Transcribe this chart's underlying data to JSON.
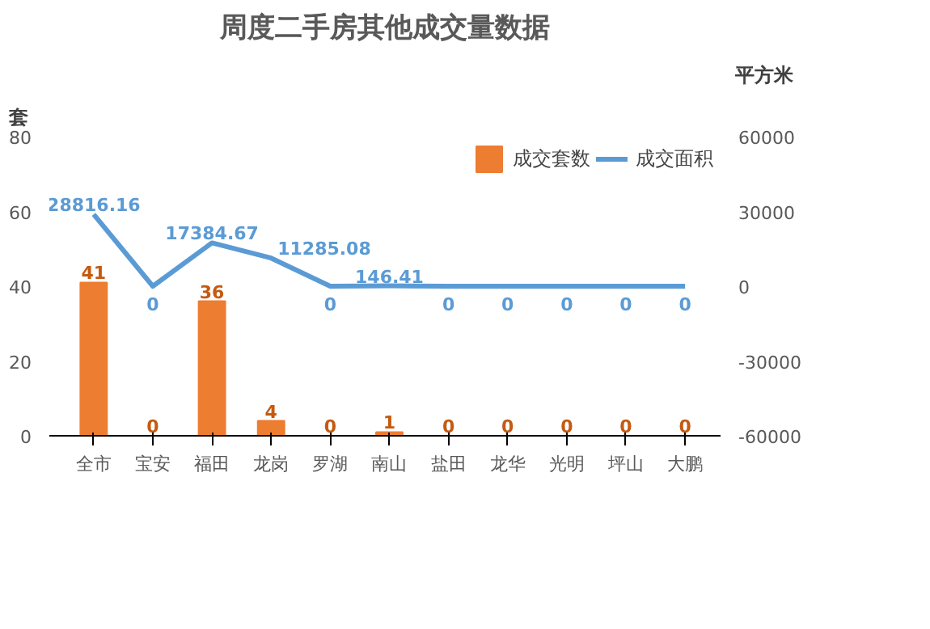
{
  "chart_data": {
    "type": "bar",
    "title": "周度二手房其他成交量数据",
    "ylabel": "套",
    "y2label": "平方米",
    "categories": [
      "全市",
      "宝安",
      "福田",
      "龙岗",
      "罗湖",
      "南山",
      "盐田",
      "龙华",
      "光明",
      "坪山",
      "大鹏"
    ],
    "series": [
      {
        "name": "成交套数",
        "color": "#ed7d31",
        "values": [
          41,
          0,
          36,
          4,
          0,
          1,
          0,
          0,
          0,
          0,
          0
        ]
      },
      {
        "name": "成交面积",
        "type": "line",
        "axis": "y2",
        "color": "#5b9bd5",
        "values": [
          28816.16,
          0,
          17384.67,
          11285.08,
          0,
          146.41,
          0,
          0,
          0,
          0,
          0
        ]
      }
    ],
    "ylim": [
      0,
      80
    ],
    "yticks": [
      0,
      20,
      40,
      60,
      80
    ],
    "y2lim": [
      -60000,
      60000
    ],
    "y2ticks": [
      -60000,
      -30000,
      0,
      30000,
      60000
    ],
    "data_labels": true,
    "legend": "top right",
    "grid": false
  }
}
